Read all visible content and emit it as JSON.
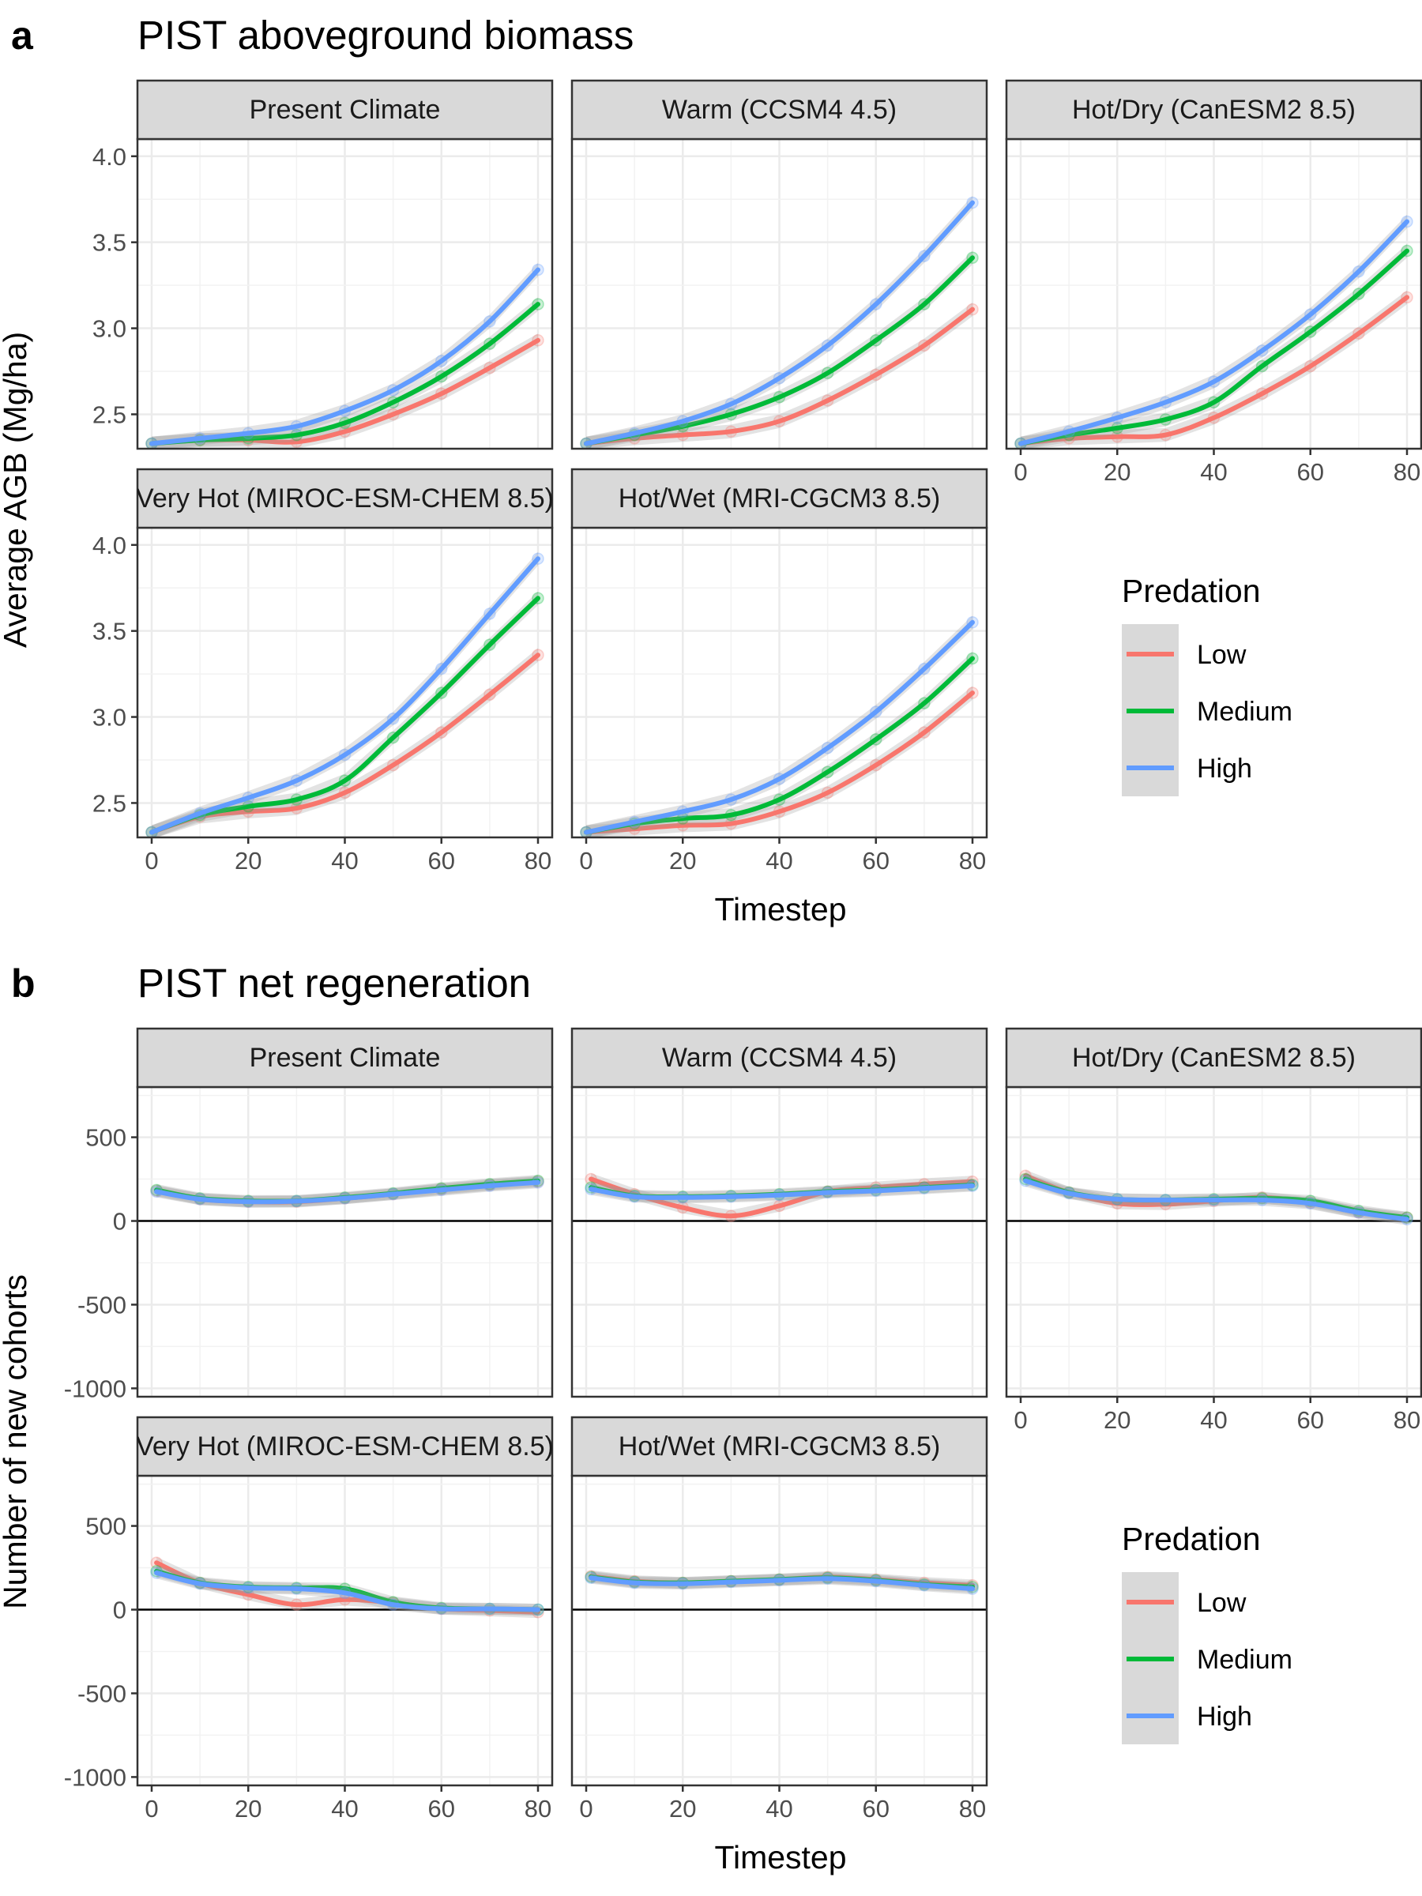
{
  "figure": {
    "panels": [
      {
        "label": "a",
        "title": "PIST aboveground biomass",
        "ylabel": "Average AGB (Mg/ha)",
        "xlabel": "Timestep",
        "legend_title": "Predation",
        "legend": [
          "Low",
          "Medium",
          "High"
        ]
      },
      {
        "label": "b",
        "title": "PIST net regeneration",
        "ylabel": "Number of new cohorts",
        "xlabel": "Timestep",
        "legend_title": "Predation",
        "legend": [
          "Low",
          "Medium",
          "High"
        ]
      }
    ],
    "colors": {
      "Low": "#F8766D",
      "Medium": "#00BA38",
      "High": "#619CFF"
    }
  },
  "chart_data": [
    {
      "type": "line",
      "title": "PIST aboveground biomass",
      "ylabel": "Average AGB (Mg/ha)",
      "xlabel": "Timestep",
      "xlim": [
        0,
        80
      ],
      "ylim": [
        2.3,
        4.1
      ],
      "x_ticks": [
        "0",
        "20",
        "40",
        "60",
        "80"
      ],
      "y_ticks": [
        "2.5",
        "3.0",
        "3.5",
        "4.0"
      ],
      "legend_title": "Predation",
      "x": [
        0,
        10,
        20,
        30,
        40,
        50,
        60,
        70,
        80
      ],
      "facets": [
        {
          "label": "Present Climate",
          "series": [
            {
              "name": "Low",
              "values": [
                2.33,
                2.35,
                2.35,
                2.34,
                2.4,
                2.5,
                2.62,
                2.77,
                2.93
              ]
            },
            {
              "name": "Medium",
              "values": [
                2.33,
                2.35,
                2.36,
                2.38,
                2.45,
                2.57,
                2.72,
                2.91,
                3.14
              ]
            },
            {
              "name": "High",
              "values": [
                2.33,
                2.36,
                2.39,
                2.43,
                2.52,
                2.64,
                2.81,
                3.04,
                3.34
              ]
            }
          ]
        },
        {
          "label": "Warm (CCSM4 4.5)",
          "series": [
            {
              "name": "Low",
              "values": [
                2.33,
                2.36,
                2.38,
                2.4,
                2.46,
                2.58,
                2.73,
                2.9,
                3.11
              ]
            },
            {
              "name": "Medium",
              "values": [
                2.33,
                2.38,
                2.43,
                2.5,
                2.6,
                2.74,
                2.93,
                3.14,
                3.41
              ]
            },
            {
              "name": "High",
              "values": [
                2.33,
                2.39,
                2.46,
                2.56,
                2.71,
                2.9,
                3.14,
                3.42,
                3.73
              ]
            }
          ]
        },
        {
          "label": "Hot/Dry (CanESM2 8.5)",
          "series": [
            {
              "name": "Low",
              "values": [
                2.33,
                2.36,
                2.37,
                2.38,
                2.48,
                2.62,
                2.78,
                2.97,
                3.18
              ]
            },
            {
              "name": "Medium",
              "values": [
                2.33,
                2.38,
                2.42,
                2.47,
                2.57,
                2.78,
                2.98,
                3.2,
                3.45
              ]
            },
            {
              "name": "High",
              "values": [
                2.33,
                2.4,
                2.48,
                2.57,
                2.69,
                2.87,
                3.08,
                3.33,
                3.62
              ]
            }
          ]
        },
        {
          "label": "Very Hot (MIROC-ESM-CHEM 8.5)",
          "series": [
            {
              "name": "Low",
              "values": [
                2.33,
                2.42,
                2.45,
                2.47,
                2.56,
                2.72,
                2.91,
                3.13,
                3.36
              ]
            },
            {
              "name": "Medium",
              "values": [
                2.33,
                2.43,
                2.48,
                2.52,
                2.63,
                2.88,
                3.14,
                3.42,
                3.69
              ]
            },
            {
              "name": "High",
              "values": [
                2.33,
                2.44,
                2.53,
                2.63,
                2.78,
                2.99,
                3.28,
                3.6,
                3.92
              ]
            }
          ]
        },
        {
          "label": "Hot/Wet (MRI-CGCM3 8.5)",
          "series": [
            {
              "name": "Low",
              "values": [
                2.33,
                2.35,
                2.37,
                2.38,
                2.45,
                2.56,
                2.72,
                2.91,
                3.14
              ]
            },
            {
              "name": "Medium",
              "values": [
                2.33,
                2.38,
                2.41,
                2.43,
                2.52,
                2.68,
                2.87,
                3.08,
                3.34
              ]
            },
            {
              "name": "High",
              "values": [
                2.33,
                2.39,
                2.45,
                2.52,
                2.64,
                2.82,
                3.03,
                3.28,
                3.55
              ]
            }
          ]
        }
      ]
    },
    {
      "type": "line",
      "title": "PIST net regeneration",
      "ylabel": "Number of new cohorts",
      "xlabel": "Timestep",
      "xlim": [
        0,
        80
      ],
      "ylim": [
        -1050,
        800
      ],
      "x_ticks": [
        "0",
        "20",
        "40",
        "60",
        "80"
      ],
      "y_ticks": [
        "-1000",
        "-500",
        "0",
        "500"
      ],
      "legend_title": "Predation",
      "x": [
        1,
        10,
        20,
        30,
        40,
        50,
        60,
        70,
        80
      ],
      "facets": [
        {
          "label": "Present Climate",
          "series": [
            {
              "name": "Low",
              "values": [
                180,
                130,
                115,
                115,
                135,
                160,
                190,
                215,
                235
              ]
            },
            {
              "name": "Medium",
              "values": [
                185,
                135,
                120,
                120,
                140,
                165,
                195,
                220,
                240
              ]
            },
            {
              "name": "High",
              "values": [
                175,
                130,
                115,
                118,
                135,
                160,
                185,
                210,
                230
              ]
            }
          ]
        },
        {
          "label": "Warm (CCSM4 4.5)",
          "series": [
            {
              "name": "Low",
              "values": [
                250,
                160,
                80,
                30,
                90,
                175,
                200,
                220,
                235
              ]
            },
            {
              "name": "Medium",
              "values": [
                200,
                150,
                145,
                150,
                160,
                175,
                185,
                200,
                215
              ]
            },
            {
              "name": "High",
              "values": [
                190,
                145,
                140,
                145,
                155,
                170,
                180,
                195,
                210
              ]
            }
          ]
        },
        {
          "label": "Hot/Dry (CanESM2 8.5)",
          "series": [
            {
              "name": "Low",
              "values": [
                270,
                170,
                105,
                100,
                120,
                140,
                110,
                50,
                20
              ]
            },
            {
              "name": "Medium",
              "values": [
                250,
                170,
                130,
                125,
                130,
                135,
                120,
                60,
                20
              ]
            },
            {
              "name": "High",
              "values": [
                240,
                165,
                130,
                125,
                125,
                125,
                105,
                50,
                10
              ]
            }
          ]
        },
        {
          "label": "Very Hot (MIROC-ESM-CHEM 8.5)",
          "series": [
            {
              "name": "Low",
              "values": [
                280,
                160,
                90,
                30,
                60,
                40,
                5,
                -5,
                -15
              ]
            },
            {
              "name": "Medium",
              "values": [
                230,
                160,
                135,
                130,
                125,
                45,
                10,
                5,
                0
              ]
            },
            {
              "name": "High",
              "values": [
                220,
                155,
                130,
                125,
                100,
                30,
                5,
                5,
                0
              ]
            }
          ]
        },
        {
          "label": "Hot/Wet (MRI-CGCM3 8.5)",
          "series": [
            {
              "name": "Low",
              "values": [
                200,
                170,
                160,
                170,
                180,
                195,
                180,
                160,
                145
              ]
            },
            {
              "name": "Medium",
              "values": [
                195,
                165,
                160,
                170,
                180,
                190,
                175,
                150,
                135
              ]
            },
            {
              "name": "High",
              "values": [
                190,
                160,
                155,
                165,
                175,
                185,
                170,
                145,
                125
              ]
            }
          ]
        }
      ]
    }
  ]
}
